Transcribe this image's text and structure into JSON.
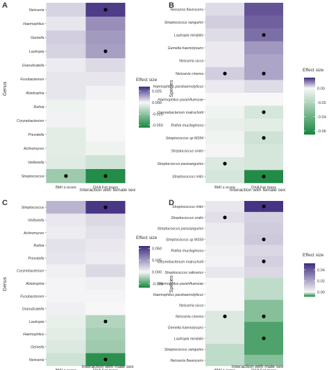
{
  "chart_data": [
    {
      "type": "heatmap",
      "panel_label": "A",
      "ylabel": "Genus",
      "xlabel": "Interaction with female sex",
      "columns": [
        "BMI z-score",
        "DXA Fat mass"
      ],
      "rows": [
        "Neisseria",
        "Haemophilus",
        "Gemella",
        "Lautropia",
        "Granulicatella",
        "Fusobacterium",
        "Abiotrophia",
        "Rothia",
        "Corynebacterium",
        "Prevotella",
        "Actinomyces",
        "Veillonella",
        "Streptococcus"
      ],
      "values": [
        [
          0.006,
          0.032
        ],
        [
          0.003,
          0.018
        ],
        [
          0.007,
          0.016
        ],
        [
          0.006,
          0.015
        ],
        [
          0.002,
          0.005
        ],
        [
          0.003,
          0.003
        ],
        [
          0.003,
          0.001
        ],
        [
          -0.002,
          0.0
        ],
        [
          0.001,
          0.0
        ],
        [
          -0.005,
          0.0
        ],
        [
          -0.005,
          -0.002
        ],
        [
          -0.006,
          -0.01
        ],
        [
          -0.022,
          -0.052
        ]
      ],
      "significant": [
        [
          false,
          true
        ],
        [
          false,
          false
        ],
        [
          false,
          false
        ],
        [
          false,
          true
        ],
        [
          false,
          false
        ],
        [
          false,
          false
        ],
        [
          false,
          false
        ],
        [
          false,
          false
        ],
        [
          false,
          false
        ],
        [
          false,
          false
        ],
        [
          false,
          false
        ],
        [
          false,
          false
        ],
        [
          true,
          true
        ]
      ],
      "legend": {
        "title": "Effect size",
        "ticks": [
          0.025,
          0.0,
          -0.025,
          -0.05
        ],
        "tick_labels": [
          "0.025",
          "0.000",
          "-0.025",
          "-0.050"
        ],
        "max": 0.035,
        "min": -0.055
      }
    },
    {
      "type": "heatmap",
      "panel_label": "B",
      "ylabel": "Species",
      "xlabel": "Interaction with female sex",
      "columns": [
        "BMI z-score",
        "DXA Fat mass"
      ],
      "rows": [
        "Neisseria flavescens",
        "Streptococcus sanguinis",
        "Lautropia mirabilis",
        "Gemella haemolysans",
        "Neisseria sicca",
        "Neisseria cinerea",
        "Haemophilus parahaemolyticus",
        "Haemophilus parainfluenzae",
        "Corynebacterium matruchotii",
        "Rothia mucilaginosa",
        "Streptococcus sp M334",
        "Streptococcus oralis",
        "Streptococcus parasanguinis",
        "Streptococcus mitis"
      ],
      "values": [
        [
          0.002,
          0.012
        ],
        [
          0.003,
          0.011
        ],
        [
          0.002,
          0.01
        ],
        [
          0.001,
          0.007
        ],
        [
          0.001,
          0.006
        ],
        [
          0.003,
          0.006
        ],
        [
          0.001,
          0.002
        ],
        [
          0.0,
          0.0
        ],
        [
          -0.002,
          -0.01
        ],
        [
          -0.004,
          -0.006
        ],
        [
          -0.002,
          -0.012
        ],
        [
          -0.001,
          -0.01
        ],
        [
          -0.008,
          -0.01
        ],
        [
          -0.01,
          -0.062
        ]
      ],
      "significant": [
        [
          false,
          false
        ],
        [
          false,
          false
        ],
        [
          false,
          true
        ],
        [
          false,
          false
        ],
        [
          false,
          false
        ],
        [
          true,
          true
        ],
        [
          false,
          false
        ],
        [
          false,
          false
        ],
        [
          false,
          true
        ],
        [
          false,
          false
        ],
        [
          false,
          true
        ],
        [
          false,
          false
        ],
        [
          true,
          false
        ],
        [
          false,
          true
        ]
      ],
      "legend": {
        "title": "Effect size",
        "ticks": [
          0.0,
          -0.02,
          -0.04,
          -0.06
        ],
        "tick_labels": [
          "0.00",
          "-0.02",
          "-0.04",
          "-0.06"
        ],
        "max": 0.015,
        "min": -0.065
      }
    },
    {
      "type": "heatmap",
      "panel_label": "C",
      "ylabel": "Genus",
      "xlabel": "Interaction with male sex",
      "columns": [
        "BMI z-score",
        "DXA Fat mass"
      ],
      "rows": [
        "Streptococcus",
        "Veillonella",
        "Actinomyces",
        "Rothia",
        "Prevotella",
        "Corynebacterium",
        "Abiotrophia",
        "Fusobacterium",
        "Granulicatella",
        "Lautropia",
        "Haemophilus",
        "Gemella",
        "Neisseria"
      ],
      "values": [
        [
          0.018,
          0.052
        ],
        [
          0.004,
          0.008
        ],
        [
          0.003,
          0.006
        ],
        [
          0.006,
          0.004
        ],
        [
          0.005,
          0.003
        ],
        [
          0.002,
          0.008
        ],
        [
          0.001,
          0.002
        ],
        [
          0.001,
          0.001
        ],
        [
          0.002,
          0.0
        ],
        [
          -0.002,
          -0.01
        ],
        [
          -0.003,
          -0.012
        ],
        [
          -0.004,
          -0.013
        ],
        [
          -0.006,
          -0.03
        ]
      ],
      "significant": [
        [
          false,
          true
        ],
        [
          false,
          false
        ],
        [
          false,
          false
        ],
        [
          false,
          false
        ],
        [
          false,
          false
        ],
        [
          false,
          false
        ],
        [
          false,
          false
        ],
        [
          false,
          false
        ],
        [
          false,
          false
        ],
        [
          false,
          true
        ],
        [
          false,
          false
        ],
        [
          false,
          false
        ],
        [
          false,
          true
        ]
      ],
      "legend": {
        "title": "Effect size",
        "ticks": [
          0.05,
          0.025,
          0.0,
          -0.025
        ],
        "tick_labels": [
          "0.050",
          "0.025",
          "0.000",
          "-0.025"
        ],
        "max": 0.055,
        "min": -0.033
      }
    },
    {
      "type": "heatmap",
      "panel_label": "D",
      "ylabel": "Species",
      "xlabel": "Interaction with male sex",
      "columns": [
        "BMI z-score",
        "DXA Fat mass"
      ],
      "rows": [
        "Streptococcus mitis",
        "Streptococcus oralis",
        "Streptococcus parasanguinis",
        "Streptococcus sp M334",
        "Rothia mucilaginosa",
        "Corynebacterium matruchotii",
        "Streptococcus salivarius",
        "Haemophilus parainfluenzae",
        "Haemophilus parahaemolyticus",
        "Neisseria sicca",
        "Neisseria cinerea",
        "Gemella haemolysans",
        "Lautropia mirabilis",
        "Streptococcus sanguinis",
        "Neisseria flavescens"
      ],
      "values": [
        [
          0.004,
          0.05
        ],
        [
          0.006,
          0.01
        ],
        [
          0.003,
          0.011
        ],
        [
          0.003,
          0.012
        ],
        [
          0.002,
          0.008
        ],
        [
          0.001,
          0.01
        ],
        [
          0.004,
          0.008
        ],
        [
          0.0,
          -0.002
        ],
        [
          0.0,
          -0.002
        ],
        [
          0.0,
          -0.004
        ],
        [
          -0.001,
          -0.004
        ],
        [
          -0.001,
          -0.006
        ],
        [
          -0.001,
          -0.006
        ],
        [
          -0.002,
          -0.006
        ],
        [
          -0.002,
          -0.004
        ]
      ],
      "significant": [
        [
          false,
          true
        ],
        [
          true,
          false
        ],
        [
          false,
          false
        ],
        [
          false,
          true
        ],
        [
          false,
          false
        ],
        [
          false,
          true
        ],
        [
          false,
          false
        ],
        [
          false,
          false
        ],
        [
          false,
          false
        ],
        [
          false,
          false
        ],
        [
          true,
          true
        ],
        [
          false,
          false
        ],
        [
          false,
          true
        ],
        [
          false,
          false
        ],
        [
          false,
          false
        ]
      ],
      "legend": {
        "title": "Effect size",
        "ticks": [
          0.04,
          0.02,
          0.0
        ],
        "tick_labels": [
          "0.04",
          "0.02",
          "0.00"
        ],
        "max": 0.052,
        "min": -0.008
      }
    }
  ],
  "colors": {
    "positive_max": "#3f2b7e",
    "negative_max": "#17863e",
    "neutral": "#f7f7f7",
    "dot": "#000000"
  }
}
